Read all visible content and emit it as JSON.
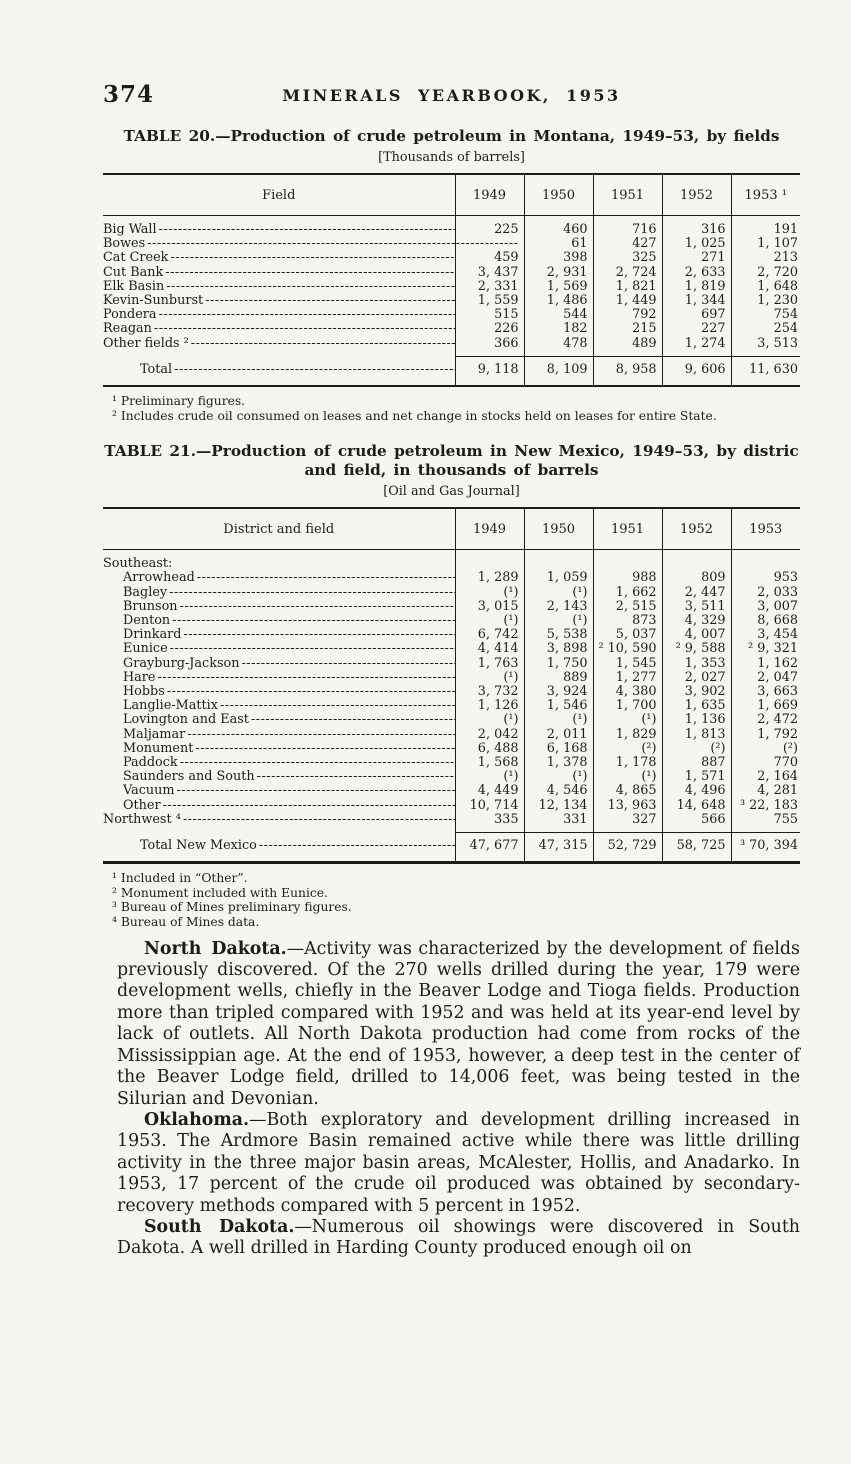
{
  "page": {
    "number": "374",
    "running_header": "MINERALS YEARBOOK, 1953"
  },
  "table20": {
    "title": "TABLE 20.—Production of crude petroleum in Montana, 1949–53, by fields",
    "unit_note": "[Thousands of barrels]",
    "field_header": "Field",
    "year_headers": [
      "1949",
      "1950",
      "1951",
      "1952",
      "1953 ¹"
    ],
    "rows": [
      {
        "field": "Big Wall",
        "values": [
          "225",
          "460",
          "716",
          "316",
          "191"
        ]
      },
      {
        "field": "Bowes",
        "values": [
          "",
          "61",
          "427",
          "1, 025",
          "1, 107"
        ]
      },
      {
        "field": "Cat Creek",
        "values": [
          "459",
          "398",
          "325",
          "271",
          "213"
        ]
      },
      {
        "field": "Cut Bank",
        "values": [
          "3, 437",
          "2, 931",
          "2, 724",
          "2, 633",
          "2, 720"
        ]
      },
      {
        "field": "Elk Basin",
        "values": [
          "2, 331",
          "1, 569",
          "1, 821",
          "1, 819",
          "1, 648"
        ]
      },
      {
        "field": "Kevin-Sunburst",
        "values": [
          "1, 559",
          "1, 486",
          "1, 449",
          "1, 344",
          "1, 230"
        ]
      },
      {
        "field": "Pondera",
        "values": [
          "515",
          "544",
          "792",
          "697",
          "754"
        ]
      },
      {
        "field": "Reagan",
        "values": [
          "226",
          "182",
          "215",
          "227",
          "254"
        ]
      },
      {
        "field": "Other fields ²",
        "values": [
          "366",
          "478",
          "489",
          "1, 274",
          "3, 513"
        ]
      }
    ],
    "total_label": "Total",
    "total_values": [
      "9, 118",
      "8, 109",
      "8, 958",
      "9, 606",
      "11, 630"
    ],
    "footnotes": [
      "¹ Preliminary figures.",
      "² Includes crude oil consumed on leases and net change in stocks held on leases for entire State."
    ]
  },
  "table21": {
    "title_line1": "TABLE 21.—Production of crude petroleum in New Mexico, 1949–53, by distric",
    "title_line2": "and field, in thousands of barrels",
    "unit_note": "[Oil and Gas Journal]",
    "field_header": "District and field",
    "year_headers": [
      "1949",
      "1950",
      "1951",
      "1952",
      "1953"
    ],
    "group_label": "Southeast:",
    "rows": [
      {
        "field": "Arrowhead",
        "values": [
          "1, 289",
          "1, 059",
          "988",
          "809",
          "953"
        ]
      },
      {
        "field": "Bagley",
        "values": [
          "(¹)",
          "(¹)",
          "1, 662",
          "2, 447",
          "2, 033"
        ]
      },
      {
        "field": "Brunson",
        "values": [
          "3, 015",
          "2, 143",
          "2, 515",
          "3, 511",
          "3, 007"
        ]
      },
      {
        "field": "Denton",
        "values": [
          "(¹)",
          "(¹)",
          "873",
          "4, 329",
          "8, 668"
        ]
      },
      {
        "field": "Drinkard",
        "values": [
          "6, 742",
          "5, 538",
          "5, 037",
          "4, 007",
          "3, 454"
        ]
      },
      {
        "field": "Eunice",
        "values": [
          "4, 414",
          "3, 898",
          "² 10, 590",
          "² 9, 588",
          "² 9, 321"
        ]
      },
      {
        "field": "Grayburg-Jackson",
        "values": [
          "1, 763",
          "1, 750",
          "1, 545",
          "1, 353",
          "1, 162"
        ]
      },
      {
        "field": "Hare",
        "values": [
          "(¹)",
          "889",
          "1, 277",
          "2, 027",
          "2, 047"
        ]
      },
      {
        "field": "Hobbs",
        "values": [
          "3, 732",
          "3, 924",
          "4, 380",
          "3, 902",
          "3, 663"
        ]
      },
      {
        "field": "Langlie-Mattix",
        "values": [
          "1, 126",
          "1, 546",
          "1, 700",
          "1, 635",
          "1, 669"
        ]
      },
      {
        "field": "Lovington and East",
        "values": [
          "(¹)",
          "(¹)",
          "(¹)",
          "1, 136",
          "2, 472"
        ]
      },
      {
        "field": "Maljamar",
        "values": [
          "2, 042",
          "2, 011",
          "1, 829",
          "1, 813",
          "1, 792"
        ]
      },
      {
        "field": "Monument",
        "values": [
          "6, 488",
          "6, 168",
          "(²)",
          "(²)",
          "(²)"
        ]
      },
      {
        "field": "Paddock",
        "values": [
          "1, 568",
          "1, 378",
          "1, 178",
          "887",
          "770"
        ]
      },
      {
        "field": "Saunders and South",
        "values": [
          "(¹)",
          "(¹)",
          "(¹)",
          "1, 571",
          "2, 164"
        ]
      },
      {
        "field": "Vacuum",
        "values": [
          "4, 449",
          "4, 546",
          "4, 865",
          "4, 496",
          "4, 281"
        ]
      },
      {
        "field": "Other",
        "values": [
          "10, 714",
          "12, 134",
          "13, 963",
          "14, 648",
          "³ 22, 183"
        ]
      },
      {
        "field": "Northwest ⁴",
        "values": [
          "335",
          "331",
          "327",
          "566",
          "755"
        ]
      }
    ],
    "total_label": "Total New Mexico",
    "total_values": [
      "47, 677",
      "47, 315",
      "52, 729",
      "58, 725",
      "³ 70, 394"
    ],
    "footnotes": [
      "¹ Included in “Other”.",
      "² Monument included with Eunice.",
      "³ Bureau of Mines preliminary figures.",
      "⁴ Bureau of Mines data."
    ]
  },
  "body_paragraphs": [
    {
      "lead": "North Dakota.",
      "text": "—Activity was characterized by the development of fields previously discovered.  Of the 270 wells drilled during the year, 179 were development wells, chiefly in the Beaver Lodge and Tioga fields.  Production more than tripled compared with 1952 and was held at its year-end level by lack of outlets.  All North Dakota production had come from rocks of the Mississippian age.  At the end of 1953, however, a deep test in the center of the Beaver Lodge field, drilled to 14,006 feet, was being tested in the Silurian and Devonian."
    },
    {
      "lead": "Oklahoma.",
      "text": "—Both exploratory and development drilling increased in 1953.  The Ardmore Basin remained active while there was little drilling activity in the three major basin areas, McAlester, Hollis, and Anadarko.  In 1953, 17 percent of the crude oil produced was obtained by secondary-recovery methods compared with 5 percent in 1952."
    },
    {
      "lead": "South Dakota.",
      "text": "—Numerous oil showings were discovered in South Dakota.  A well drilled in Harding County produced enough oil on"
    }
  ]
}
